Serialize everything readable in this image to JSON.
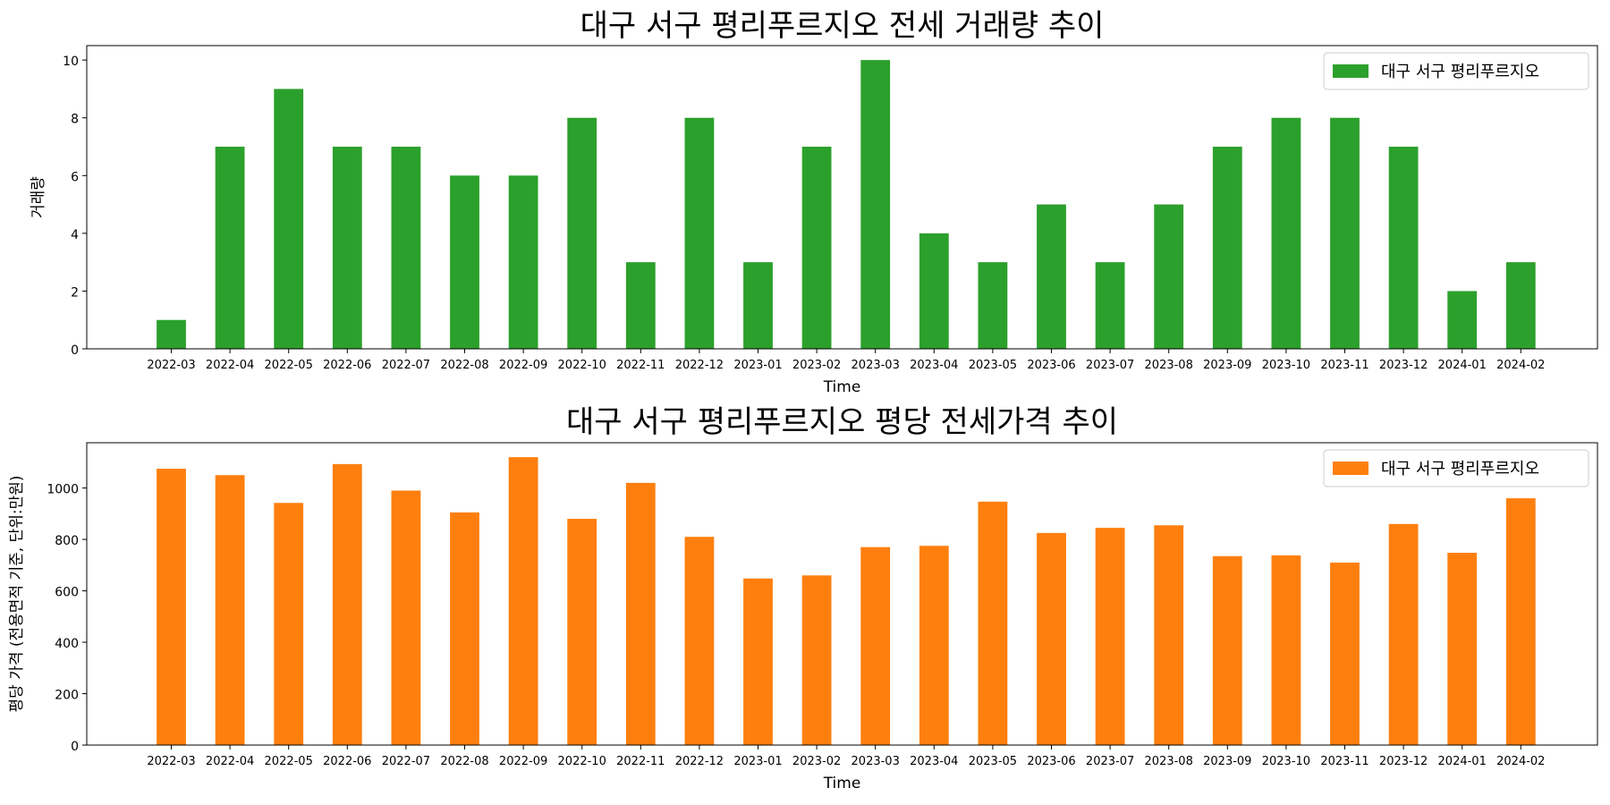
{
  "chart_data": [
    {
      "type": "bar",
      "title": "대구 서구 평리푸르지오 전세 거래량 추이",
      "xlabel": "Time",
      "ylabel": "거래량",
      "categories": [
        "2022-03",
        "2022-04",
        "2022-05",
        "2022-06",
        "2022-07",
        "2022-08",
        "2022-09",
        "2022-10",
        "2022-11",
        "2022-12",
        "2023-01",
        "2023-02",
        "2023-03",
        "2023-04",
        "2023-05",
        "2023-06",
        "2023-07",
        "2023-08",
        "2023-09",
        "2023-10",
        "2023-11",
        "2023-12",
        "2024-01",
        "2024-02"
      ],
      "series": [
        {
          "name": "대구 서구 평리푸르지오",
          "color": "#2ca02c",
          "values": [
            1,
            7,
            9,
            7,
            7,
            6,
            6,
            8,
            3,
            8,
            3,
            7,
            10,
            4,
            3,
            5,
            3,
            5,
            7,
            8,
            8,
            7,
            2,
            3
          ]
        }
      ],
      "yticks": [
        0,
        2,
        4,
        6,
        8,
        10
      ],
      "ylim": [
        0,
        10.5
      ],
      "legend_position": "top-right",
      "grid": false
    },
    {
      "type": "bar",
      "title": "대구 서구 평리푸르지오 평당 전세가격 추이",
      "xlabel": "Time",
      "ylabel": "평당 가격 (전용면적 기준, 단위:만원)",
      "categories": [
        "2022-03",
        "2022-04",
        "2022-05",
        "2022-06",
        "2022-07",
        "2022-08",
        "2022-09",
        "2022-10",
        "2022-11",
        "2022-12",
        "2023-01",
        "2023-02",
        "2023-03",
        "2023-04",
        "2023-05",
        "2023-06",
        "2023-07",
        "2023-08",
        "2023-09",
        "2023-10",
        "2023-11",
        "2023-12",
        "2024-01",
        "2024-02"
      ],
      "series": [
        {
          "name": "대구 서구 평리푸르지오",
          "color": "#ff7f0e",
          "values": [
            1075,
            1050,
            942,
            1093,
            990,
            905,
            1120,
            880,
            1020,
            810,
            648,
            660,
            770,
            775,
            947,
            825,
            845,
            855,
            735,
            738,
            710,
            860,
            748,
            960
          ]
        }
      ],
      "yticks": [
        0,
        200,
        400,
        600,
        800,
        1000
      ],
      "ylim": [
        0,
        1176
      ],
      "legend_position": "top-right",
      "grid": false
    }
  ]
}
